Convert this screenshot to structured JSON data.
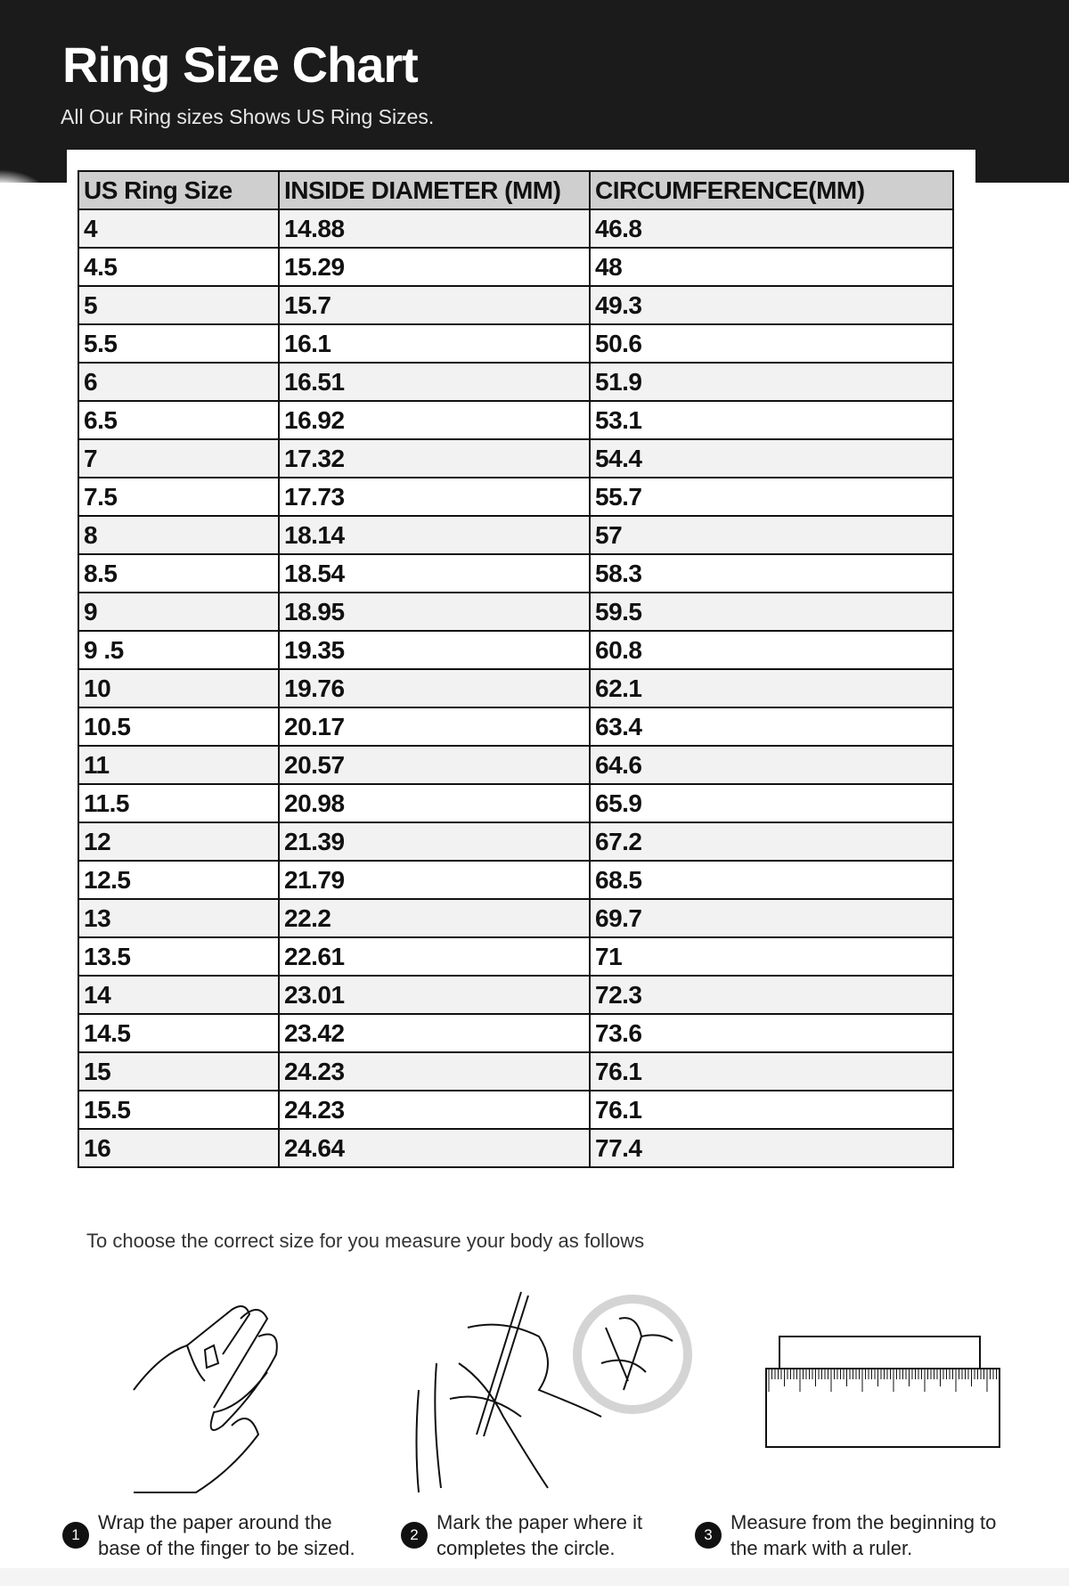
{
  "header": {
    "title": "Ring Size Chart",
    "subtitle": "All Our Ring sizes Shows US Ring Sizes."
  },
  "table": {
    "columns": [
      "US Ring Size",
      "INSIDE DIAMETER (MM)",
      "CIRCUMFERENCE(MM)"
    ],
    "rows": [
      [
        "4",
        "14.88",
        "46.8"
      ],
      [
        "4.5",
        "15.29",
        "48"
      ],
      [
        "5",
        "15.7",
        "49.3"
      ],
      [
        "5.5",
        "16.1",
        "50.6"
      ],
      [
        "6",
        "16.51",
        "51.9"
      ],
      [
        "6.5",
        "16.92",
        "53.1"
      ],
      [
        "7",
        "17.32",
        "54.4"
      ],
      [
        "7.5",
        "17.73",
        "55.7"
      ],
      [
        "8",
        "18.14",
        "57"
      ],
      [
        "8.5",
        "18.54",
        "58.3"
      ],
      [
        "9",
        "18.95",
        "59.5"
      ],
      [
        "9 .5",
        "19.35",
        "60.8"
      ],
      [
        "10",
        "19.76",
        "62.1"
      ],
      [
        "10.5",
        "20.17",
        "63.4"
      ],
      [
        "11",
        "20.57",
        "64.6"
      ],
      [
        "11.5",
        "20.98",
        "65.9"
      ],
      [
        "12",
        "21.39",
        "67.2"
      ],
      [
        "12.5",
        "21.79",
        "68.5"
      ],
      [
        "13",
        "22.2",
        "69.7"
      ],
      [
        "13.5",
        "22.61",
        "71"
      ],
      [
        "14",
        "23.01",
        "72.3"
      ],
      [
        "14.5",
        "23.42",
        "73.6"
      ],
      [
        "15",
        "24.23",
        "76.1"
      ],
      [
        "15.5",
        "24.23",
        "76.1"
      ],
      [
        "16",
        "24.64",
        "77.4"
      ]
    ]
  },
  "instructions": {
    "intro": "To choose the correct size for you measure your body as follows",
    "steps": [
      {
        "number": "1",
        "line1": "Wrap the paper around the",
        "line2": "base of the finger to be sized.",
        "icon": "hand-wrap-icon"
      },
      {
        "number": "2",
        "line1": "Mark the paper where it",
        "line2": "completes the circle.",
        "icon": "hand-pen-mark-icon"
      },
      {
        "number": "3",
        "line1": "Measure from the beginning to",
        "line2": "the mark with a ruler.",
        "icon": "ruler-icon"
      }
    ]
  }
}
